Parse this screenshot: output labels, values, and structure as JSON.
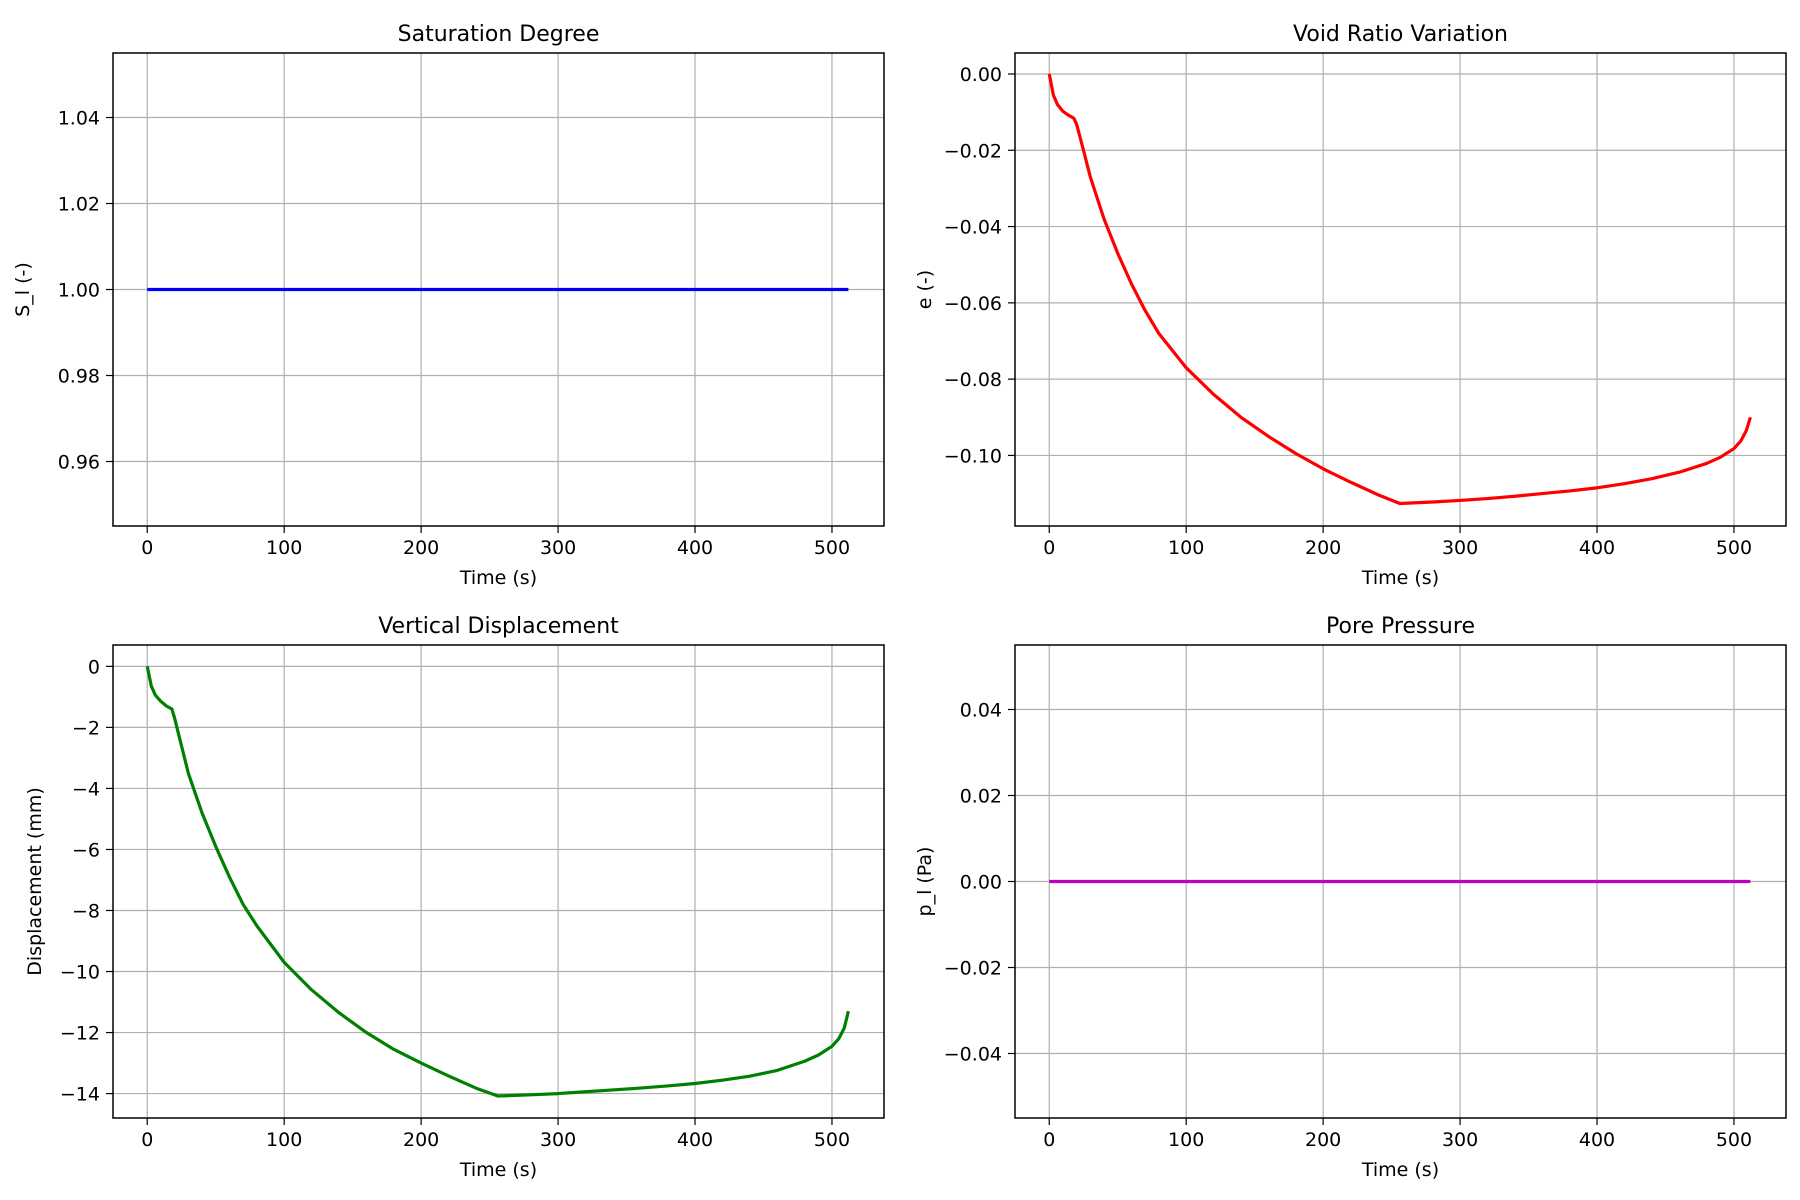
{
  "chart_data": [
    {
      "type": "line",
      "title": "Saturation Degree",
      "xlabel": "Time (s)",
      "ylabel": "S_l (-)",
      "xlim": [
        -25,
        538
      ],
      "ylim": [
        0.945,
        1.055
      ],
      "xticks": [
        0,
        100,
        200,
        300,
        400,
        500
      ],
      "xtick_labels": [
        "0",
        "100",
        "200",
        "300",
        "400",
        "500"
      ],
      "yticks": [
        0.96,
        0.98,
        1.0,
        1.02,
        1.04
      ],
      "ytick_labels": [
        "0.96",
        "0.98",
        "1.00",
        "1.02",
        "1.04"
      ],
      "grid": true,
      "series": [
        {
          "color": "#0000ff",
          "x": [
            0,
            512
          ],
          "y": [
            1.0,
            1.0
          ]
        }
      ]
    },
    {
      "type": "line",
      "title": "Void Ratio Variation",
      "xlabel": "Time (s)",
      "ylabel": "e (-)",
      "xlim": [
        -25,
        538
      ],
      "ylim": [
        -0.1185,
        0.0055
      ],
      "xticks": [
        0,
        100,
        200,
        300,
        400,
        500
      ],
      "xtick_labels": [
        "0",
        "100",
        "200",
        "300",
        "400",
        "500"
      ],
      "yticks": [
        0.0,
        -0.02,
        -0.04,
        -0.06,
        -0.08,
        -0.1
      ],
      "ytick_labels": [
        "0.00",
        "−0.02",
        "−0.04",
        "−0.06",
        "−0.08",
        "−0.10"
      ],
      "grid": true,
      "series": [
        {
          "color": "#ff0000",
          "x": [
            0,
            3,
            6,
            10,
            14,
            18,
            20,
            25,
            30,
            40,
            50,
            60,
            70,
            80,
            100,
            120,
            140,
            160,
            180,
            200,
            220,
            240,
            256,
            280,
            300,
            320,
            340,
            360,
            380,
            400,
            420,
            440,
            460,
            480,
            490,
            500,
            505,
            509,
            512
          ],
          "y": [
            0.0,
            -0.0055,
            -0.008,
            -0.0098,
            -0.0108,
            -0.0116,
            -0.0132,
            -0.02,
            -0.027,
            -0.038,
            -0.047,
            -0.055,
            -0.062,
            -0.068,
            -0.077,
            -0.084,
            -0.09,
            -0.095,
            -0.0995,
            -0.1035,
            -0.107,
            -0.1103,
            -0.1126,
            -0.1122,
            -0.1118,
            -0.1113,
            -0.1107,
            -0.11,
            -0.1093,
            -0.1085,
            -0.1074,
            -0.1061,
            -0.1044,
            -0.1021,
            -0.1005,
            -0.0982,
            -0.0962,
            -0.0935,
            -0.09
          ]
        }
      ]
    },
    {
      "type": "line",
      "title": "Vertical Displacement",
      "xlabel": "Time (s)",
      "ylabel": "Displacement (mm)",
      "xlim": [
        -25,
        538
      ],
      "ylim": [
        -14.8,
        0.7
      ],
      "xticks": [
        0,
        100,
        200,
        300,
        400,
        500
      ],
      "xtick_labels": [
        "0",
        "100",
        "200",
        "300",
        "400",
        "500"
      ],
      "yticks": [
        0,
        -2,
        -4,
        -6,
        -8,
        -10,
        -12,
        -14
      ],
      "ytick_labels": [
        "0",
        "−2",
        "−4",
        "−6",
        "−8",
        "−10",
        "−12",
        "−14"
      ],
      "grid": true,
      "series": [
        {
          "color": "#008000",
          "x": [
            0,
            3,
            6,
            10,
            14,
            18,
            20,
            25,
            30,
            40,
            50,
            60,
            70,
            80,
            100,
            120,
            140,
            160,
            180,
            200,
            220,
            240,
            256,
            280,
            300,
            320,
            340,
            360,
            380,
            400,
            420,
            440,
            460,
            480,
            490,
            500,
            505,
            509,
            512
          ],
          "y": [
            0.0,
            -0.65,
            -0.95,
            -1.15,
            -1.3,
            -1.4,
            -1.7,
            -2.6,
            -3.5,
            -4.8,
            -5.9,
            -6.9,
            -7.8,
            -8.5,
            -9.7,
            -10.6,
            -11.35,
            -12.0,
            -12.55,
            -13.0,
            -13.42,
            -13.82,
            -14.08,
            -14.04,
            -14.0,
            -13.94,
            -13.88,
            -13.82,
            -13.75,
            -13.67,
            -13.56,
            -13.43,
            -13.24,
            -12.94,
            -12.74,
            -12.45,
            -12.2,
            -11.85,
            -11.3
          ]
        }
      ]
    },
    {
      "type": "line",
      "title": "Pore Pressure",
      "xlabel": "Time (s)",
      "ylabel": "p_l (Pa)",
      "xlim": [
        -25,
        538
      ],
      "ylim": [
        -0.055,
        0.055
      ],
      "xticks": [
        0,
        100,
        200,
        300,
        400,
        500
      ],
      "xtick_labels": [
        "0",
        "100",
        "200",
        "300",
        "400",
        "500"
      ],
      "yticks": [
        0.04,
        0.02,
        0.0,
        -0.02,
        -0.04
      ],
      "ytick_labels": [
        "0.04",
        "0.02",
        "0.00",
        "−0.02",
        "−0.04"
      ],
      "grid": true,
      "series": [
        {
          "color": "#bf00bf",
          "x": [
            0,
            512
          ],
          "y": [
            0.0,
            0.0
          ]
        }
      ]
    }
  ]
}
